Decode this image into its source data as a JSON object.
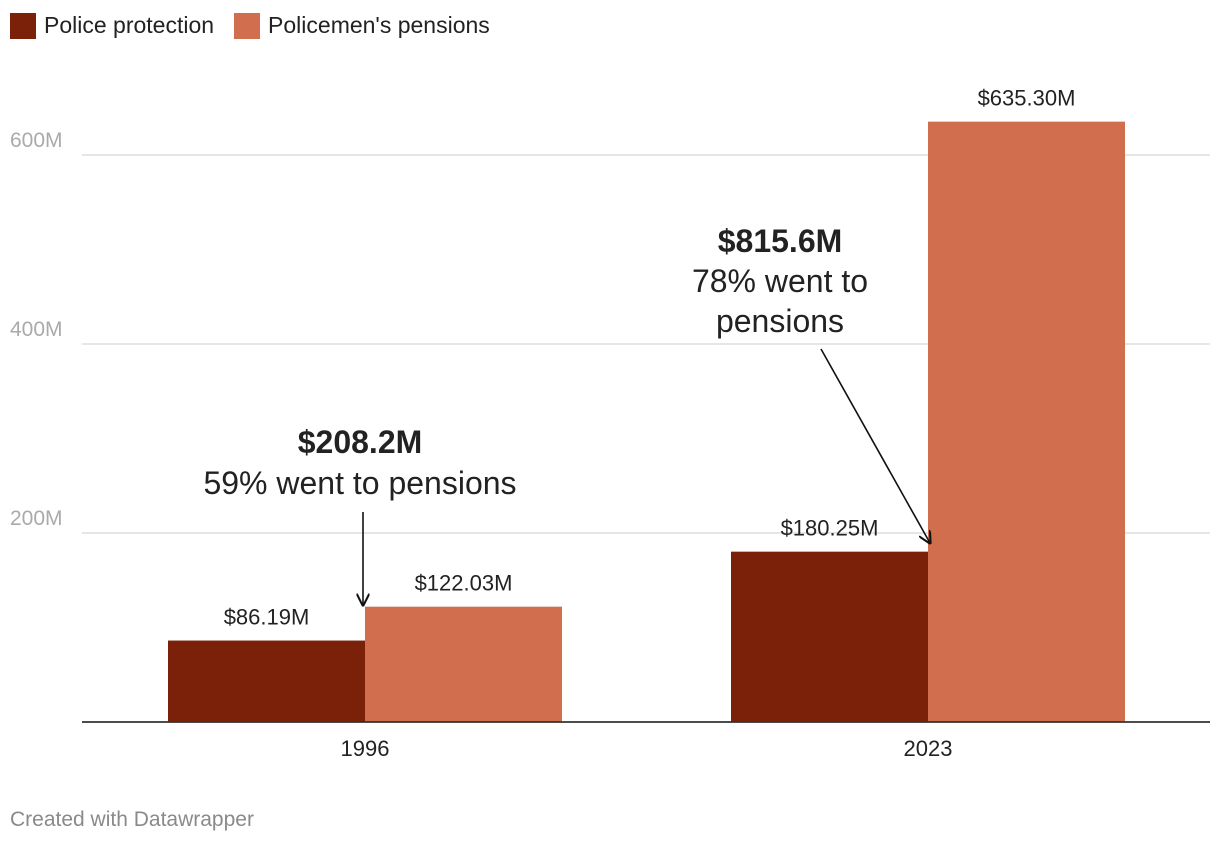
{
  "chart_data": {
    "type": "bar",
    "categories": [
      "1996",
      "2023"
    ],
    "series": [
      {
        "name": "Police protection",
        "values": [
          86.19,
          180.25
        ],
        "labels": [
          "$86.19M",
          "$180.25M"
        ]
      },
      {
        "name": "Policemen's pensions",
        "values": [
          122.03,
          635.3
        ],
        "labels": [
          "$122.03M",
          "$635.30M"
        ]
      }
    ],
    "ylim": [
      0,
      700
    ],
    "yticks": [
      200,
      400,
      600
    ],
    "ytick_labels": [
      "200M",
      "400M",
      "600M"
    ],
    "annotations": [
      {
        "category": "1996",
        "title": "$208.2M",
        "lines": [
          "59% went to pensions"
        ]
      },
      {
        "category": "2023",
        "title": "$815.6M",
        "lines": [
          "78% went to",
          "pensions"
        ]
      }
    ],
    "legend_placement": "top-left"
  },
  "colors": {
    "series": [
      "#7b2109",
      "#d06e4d"
    ],
    "grid": "#dddddd",
    "axis": "#333333",
    "tick_text": "#aaaaaa"
  },
  "footer": {
    "credit": "Created with Datawrapper"
  }
}
